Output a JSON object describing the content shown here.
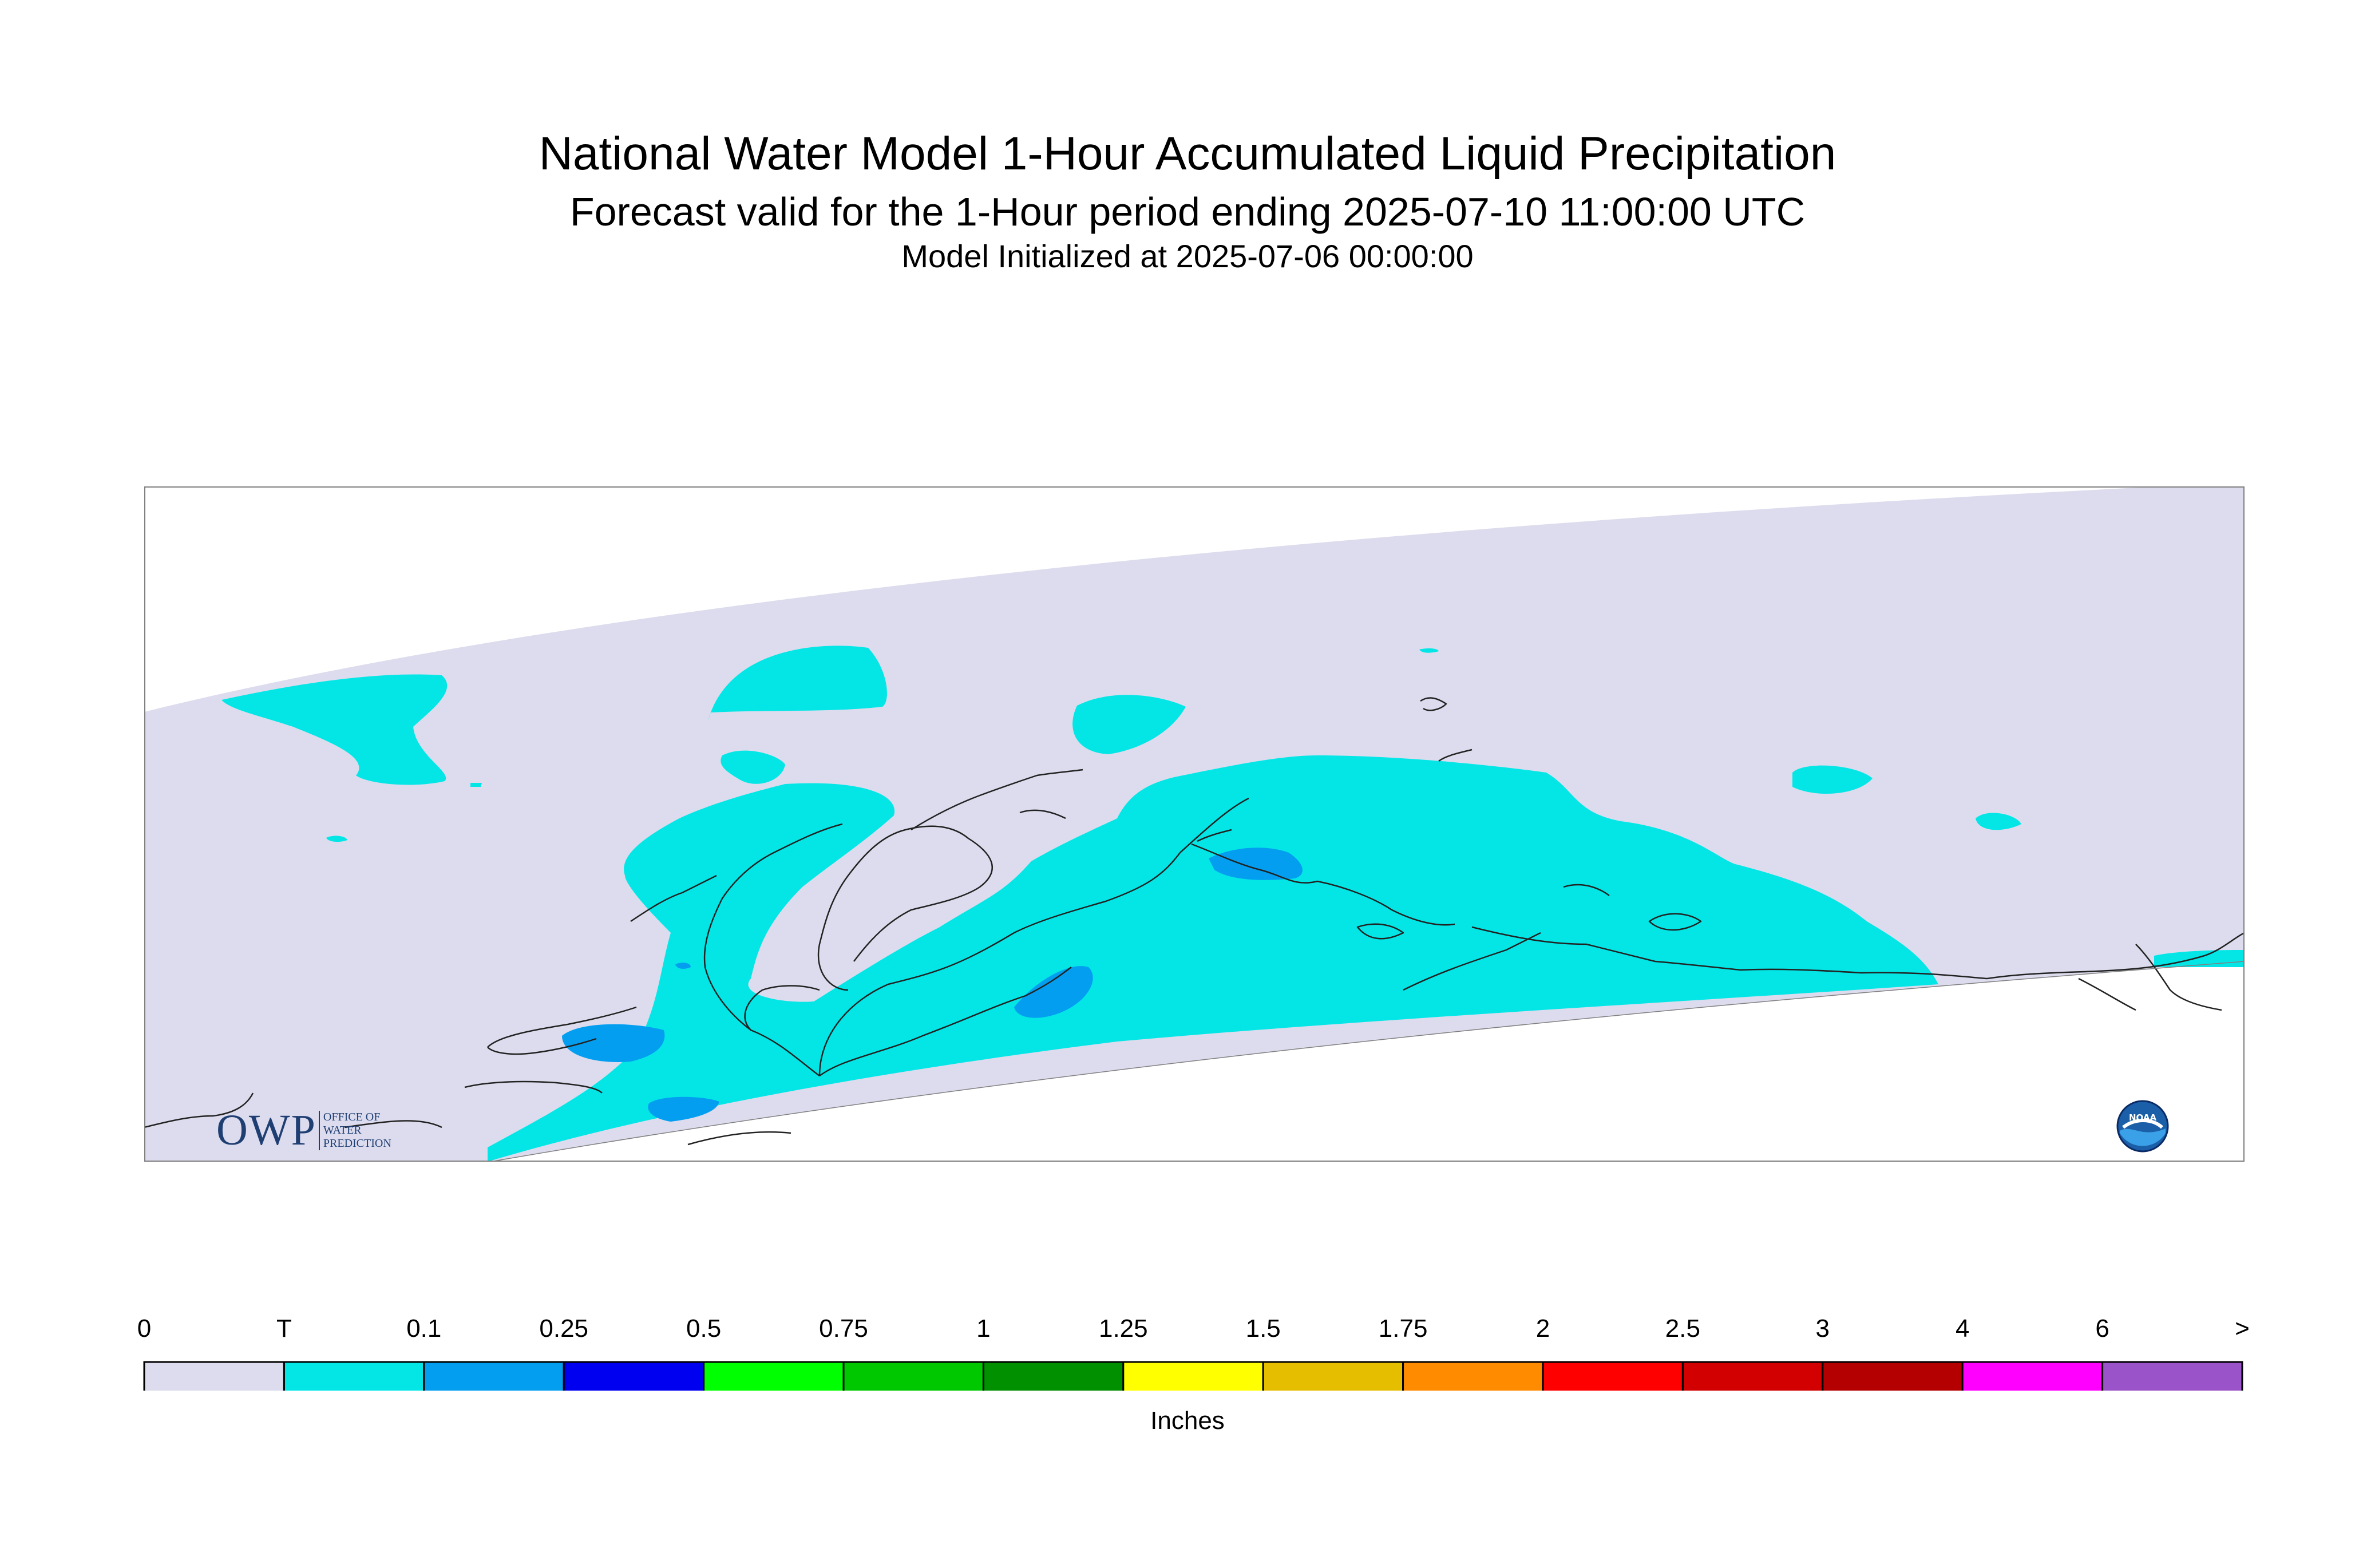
{
  "header": {
    "title": "National Water Model 1-Hour Accumulated Liquid Precipitation",
    "subtitle": "Forecast valid for the 1-Hour period ending 2025-07-10 11:00:00 UTC",
    "init": "Model Initialized at 2025-07-06 00:00:00"
  },
  "colors": {
    "no_precip": "#dcdcee",
    "trace": "#04e6e6",
    "light": "#039ef0",
    "frame": "#808080",
    "coast": "#222222"
  },
  "legend": {
    "ticks": [
      "0",
      "T",
      "0.1",
      "0.25",
      "0.5",
      "0.75",
      "1",
      "1.25",
      "1.5",
      "1.75",
      "2",
      "2.5",
      "3",
      "4",
      "6",
      ">"
    ],
    "colors": [
      "#dcdcee",
      "#04e6e6",
      "#039ef0",
      "#0000f0",
      "#00ff00",
      "#00c800",
      "#009000",
      "#ffff00",
      "#e6be00",
      "#ff8c00",
      "#ff0000",
      "#d20000",
      "#b40000",
      "#ff00ff",
      "#9a53c8"
    ],
    "units": "Inches"
  },
  "logos": {
    "owp_letters": "OWP",
    "owp_line1": "OFFICE OF",
    "owp_line2": "WATER",
    "owp_line3": "PREDICTION",
    "noaa_text": "NOAA"
  }
}
